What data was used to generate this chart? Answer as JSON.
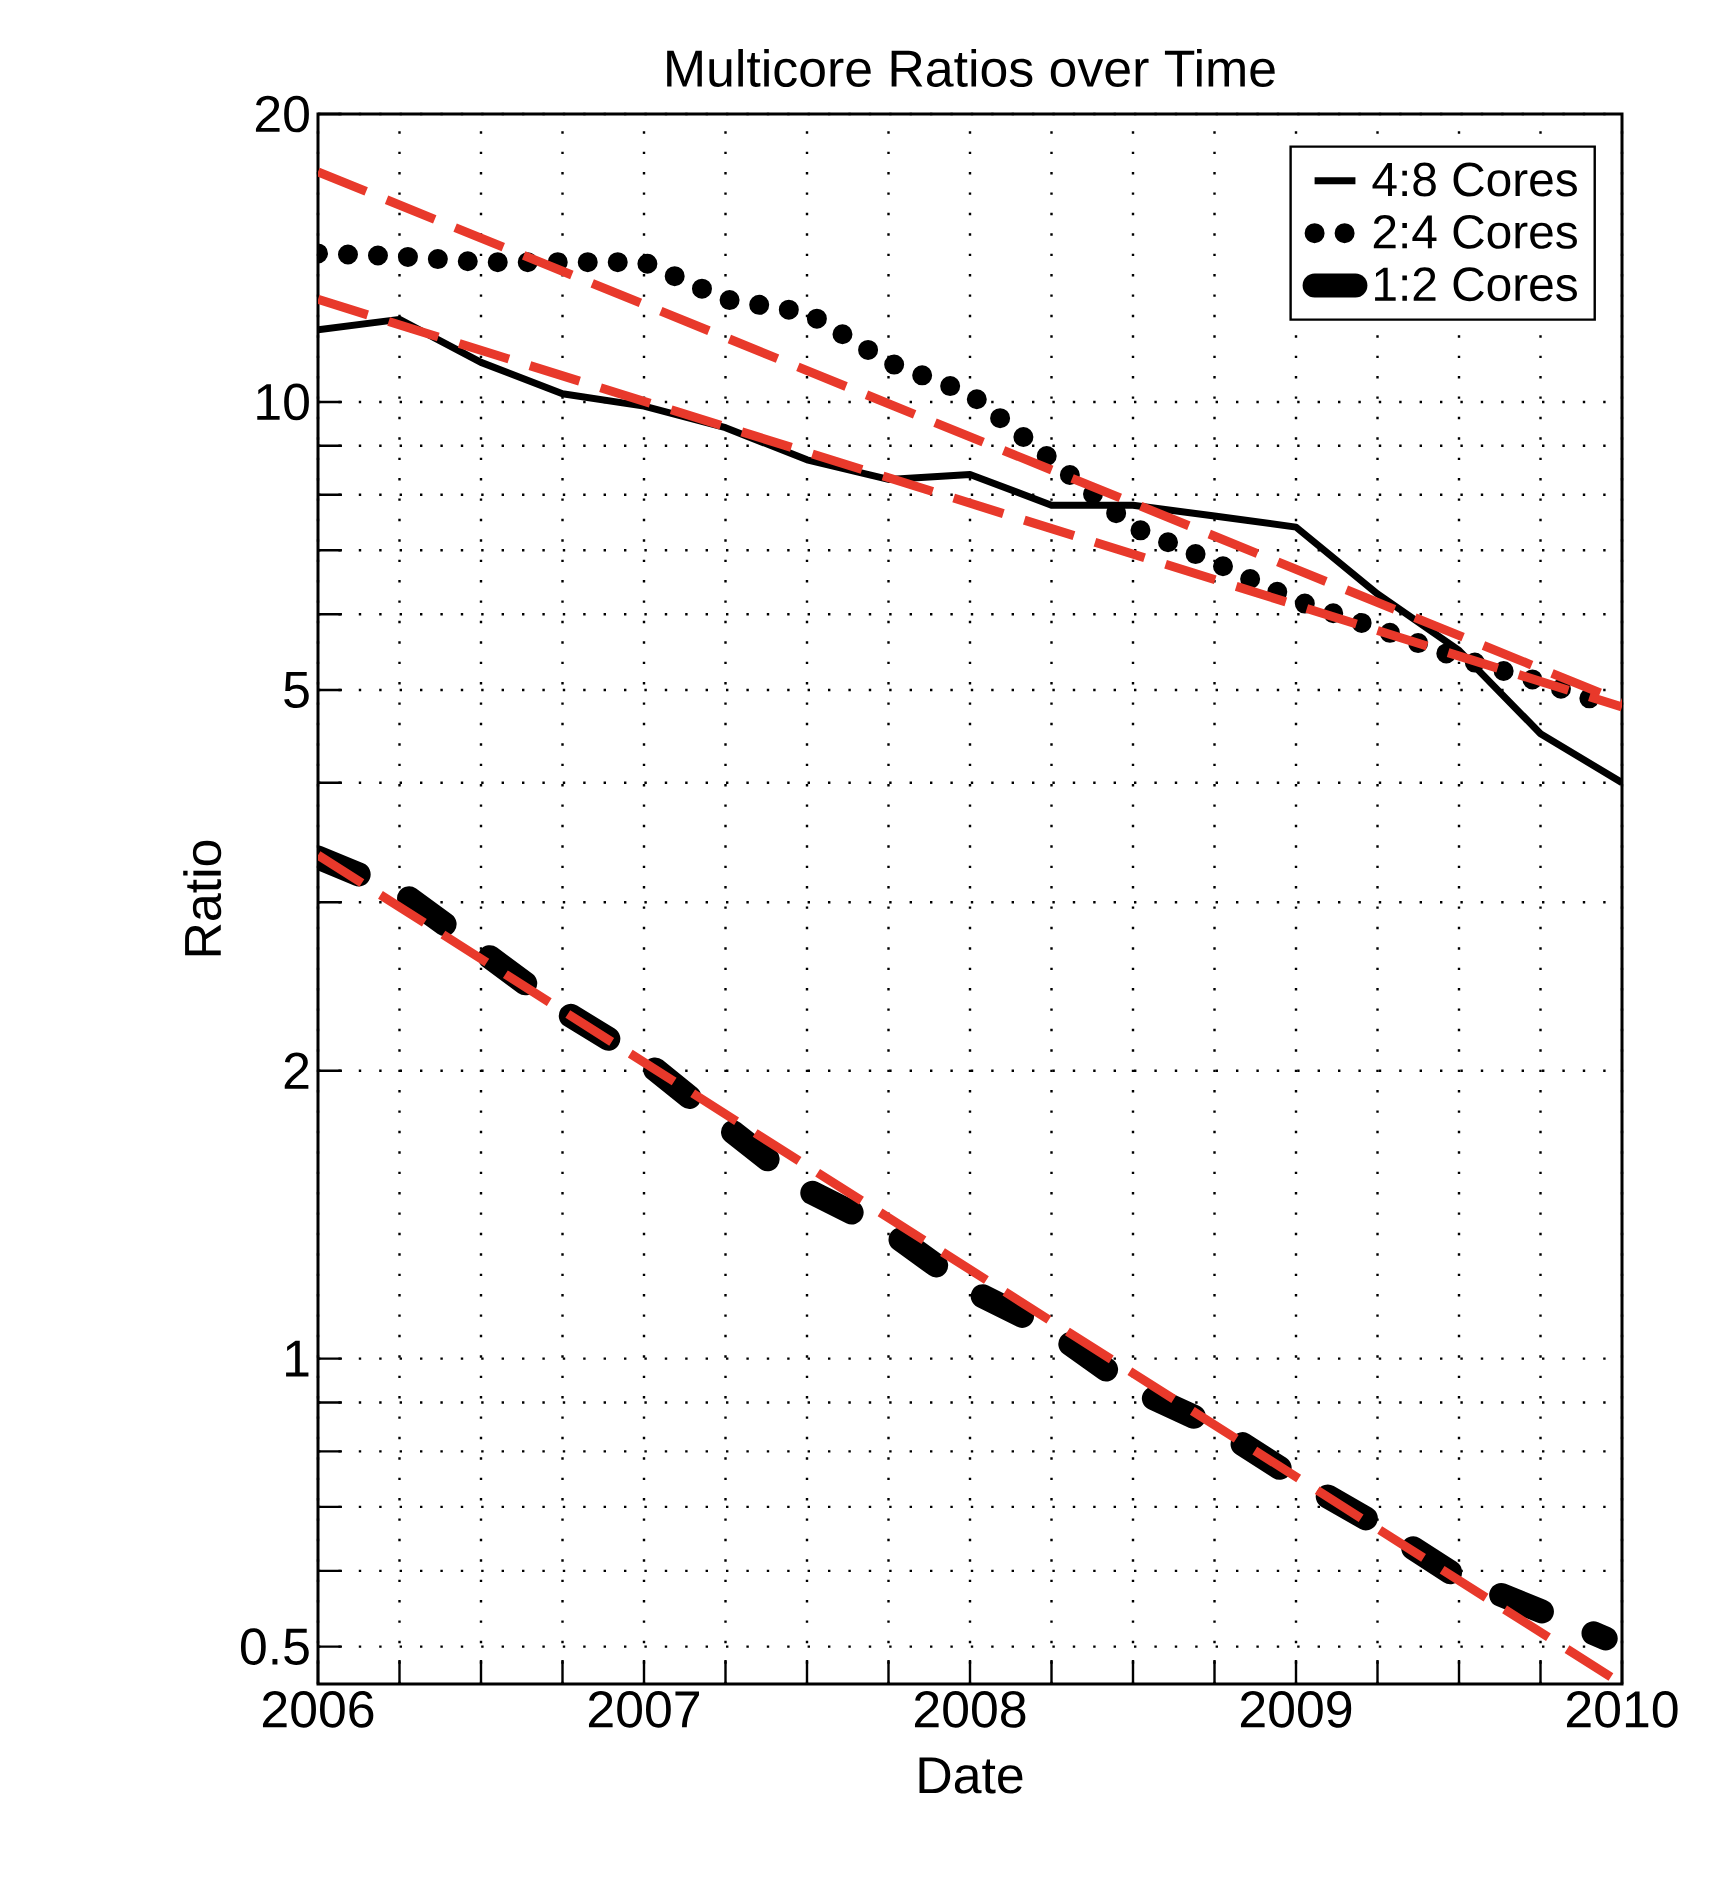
{
  "chart_data": {
    "type": "line",
    "title": "Multicore Ratios over Time",
    "xlabel": "Date",
    "ylabel": "Ratio",
    "log": "y",
    "grid": true,
    "legend": "top right",
    "xlim": [
      2006,
      2010
    ],
    "ylim": [
      0.457,
      20
    ],
    "xticks": [
      2006,
      {
        "value": 2006.25,
        "label": null
      },
      {
        "value": 2006.5,
        "label": null
      },
      {
        "value": 2006.75,
        "label": null
      },
      2007,
      {
        "value": 2007.25,
        "label": null
      },
      {
        "value": 2007.5,
        "label": null
      },
      {
        "value": 2007.75,
        "label": null
      },
      2008,
      {
        "value": 2008.25,
        "label": null
      },
      {
        "value": 2008.5,
        "label": null
      },
      {
        "value": 2008.75,
        "label": null
      },
      2009,
      {
        "value": 2009.25,
        "label": null
      },
      {
        "value": 2009.5,
        "label": null
      },
      {
        "value": 2009.75,
        "label": null
      },
      2010
    ],
    "yticks": [
      0.5,
      {
        "value": 0.6,
        "label": null
      },
      {
        "value": 0.7,
        "label": null
      },
      {
        "value": 0.8,
        "label": null
      },
      {
        "value": 0.9,
        "label": null
      },
      1,
      2,
      {
        "value": 3,
        "label": null
      },
      {
        "value": 4,
        "label": null
      },
      5,
      {
        "value": 6,
        "label": null
      },
      {
        "value": 7,
        "label": null
      },
      {
        "value": 8,
        "label": null
      },
      {
        "value": 9,
        "label": null
      },
      10,
      20
    ],
    "series": [
      {
        "name": "4:8 Cores",
        "color": "#000000",
        "line_style": "solid",
        "x": [
          2006,
          2006.25,
          2006.5,
          2006.75,
          2007,
          2007.25,
          2007.5,
          2007.75,
          2008,
          2008.25,
          2008.5,
          2008.75,
          2009,
          2009.25,
          2009.5,
          2009.75,
          2010
        ],
        "values": [
          11.9,
          12.2,
          11.0,
          10.2,
          9.9,
          9.4,
          8.7,
          8.3,
          8.4,
          7.8,
          7.8,
          7.6,
          7.4,
          6.3,
          5.5,
          4.5,
          4.0
        ]
      },
      {
        "name": "2:4 Cores",
        "color": "#000000",
        "line_style": "dotted",
        "x": [
          2006,
          2006.25,
          2006.5,
          2006.75,
          2007,
          2007.25,
          2007.5,
          2007.75,
          2008,
          2008.25,
          2008.5,
          2008.75,
          2009,
          2009.25,
          2009.5,
          2009.75,
          2009.9
        ],
        "values": [
          14.3,
          14.2,
          14.0,
          14.0,
          14.0,
          12.8,
          12.4,
          11.0,
          10.2,
          8.7,
          7.4,
          6.8,
          6.2,
          5.8,
          5.4,
          5.1,
          4.9
        ]
      },
      {
        "name": "1:2 Cores",
        "color": "#000000",
        "line_style": "dashdot",
        "x": [
          2006,
          2006.25,
          2006.5,
          2006.75,
          2007,
          2007.25,
          2007.5,
          2007.75,
          2008,
          2008.25,
          2008.5,
          2008.75,
          2009,
          2009.25,
          2009.5,
          2009.75,
          2009.95
        ],
        "values": [
          3.34,
          3.08,
          2.67,
          2.31,
          2.05,
          1.75,
          1.5,
          1.36,
          1.18,
          1.07,
          0.93,
          0.85,
          0.75,
          0.67,
          0.59,
          0.545,
          0.51
        ]
      },
      {
        "type": "line",
        "color": "#e8392b",
        "line_style": "dashed",
        "x": [
          2006,
          2010
        ],
        "values": [
          17.4,
          4.86
        ]
      },
      {
        "type": "line",
        "color": "#e8392b",
        "line_style": "dashed",
        "x": [
          2006,
          2010
        ],
        "values": [
          12.8,
          4.8
        ]
      },
      {
        "type": "line",
        "color": "#e8392b",
        "line_style": "dashed",
        "x": [
          2006,
          2010
        ],
        "values": [
          3.36,
          0.457
        ]
      }
    ]
  }
}
